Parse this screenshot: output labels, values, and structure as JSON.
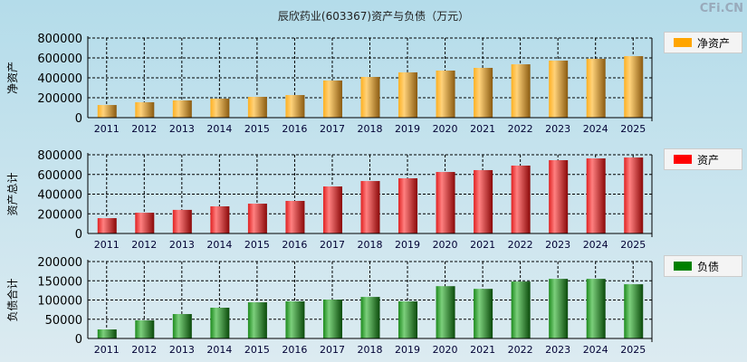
{
  "title": "辰欣药业(603367)资产与负债（万元）",
  "brand": "CFi.CN",
  "chart_data": [
    {
      "type": "bar",
      "ylabel": "净资产",
      "legend": "净资产",
      "color": "#ffa500",
      "ylim": [
        0,
        800000
      ],
      "yticks": [
        0,
        200000,
        400000,
        600000,
        800000
      ],
      "categories": [
        "2011",
        "2012",
        "2013",
        "2014",
        "2015",
        "2016",
        "2017",
        "2018",
        "2019",
        "2020",
        "2021",
        "2022",
        "2023",
        "2024",
        "2025"
      ],
      "values": [
        127000,
        155000,
        173000,
        191000,
        209000,
        227000,
        373000,
        409000,
        455000,
        473000,
        500000,
        536000,
        573000,
        591000,
        618000
      ]
    },
    {
      "type": "bar",
      "ylabel": "资产总计",
      "legend": "资产",
      "color": "#ff0000",
      "ylim": [
        0,
        800000
      ],
      "yticks": [
        0,
        200000,
        400000,
        600000,
        800000
      ],
      "categories": [
        "2011",
        "2012",
        "2013",
        "2014",
        "2015",
        "2016",
        "2017",
        "2018",
        "2019",
        "2020",
        "2021",
        "2022",
        "2023",
        "2024",
        "2025"
      ],
      "values": [
        156000,
        211000,
        240000,
        276000,
        303000,
        331000,
        478000,
        533000,
        561000,
        625000,
        644000,
        690000,
        745000,
        763000,
        772000
      ]
    },
    {
      "type": "bar",
      "ylabel": "负债合计",
      "legend": "负债",
      "color": "#008000",
      "ylim": [
        0,
        200000
      ],
      "yticks": [
        0,
        50000,
        100000,
        150000,
        200000
      ],
      "categories": [
        "2011",
        "2012",
        "2013",
        "2014",
        "2015",
        "2016",
        "2017",
        "2018",
        "2019",
        "2020",
        "2021",
        "2022",
        "2023",
        "2024",
        "2025"
      ],
      "values": [
        23500,
        47000,
        63500,
        80000,
        94000,
        96500,
        101000,
        108000,
        96500,
        136000,
        129000,
        148000,
        155000,
        155000,
        141000
      ]
    }
  ]
}
